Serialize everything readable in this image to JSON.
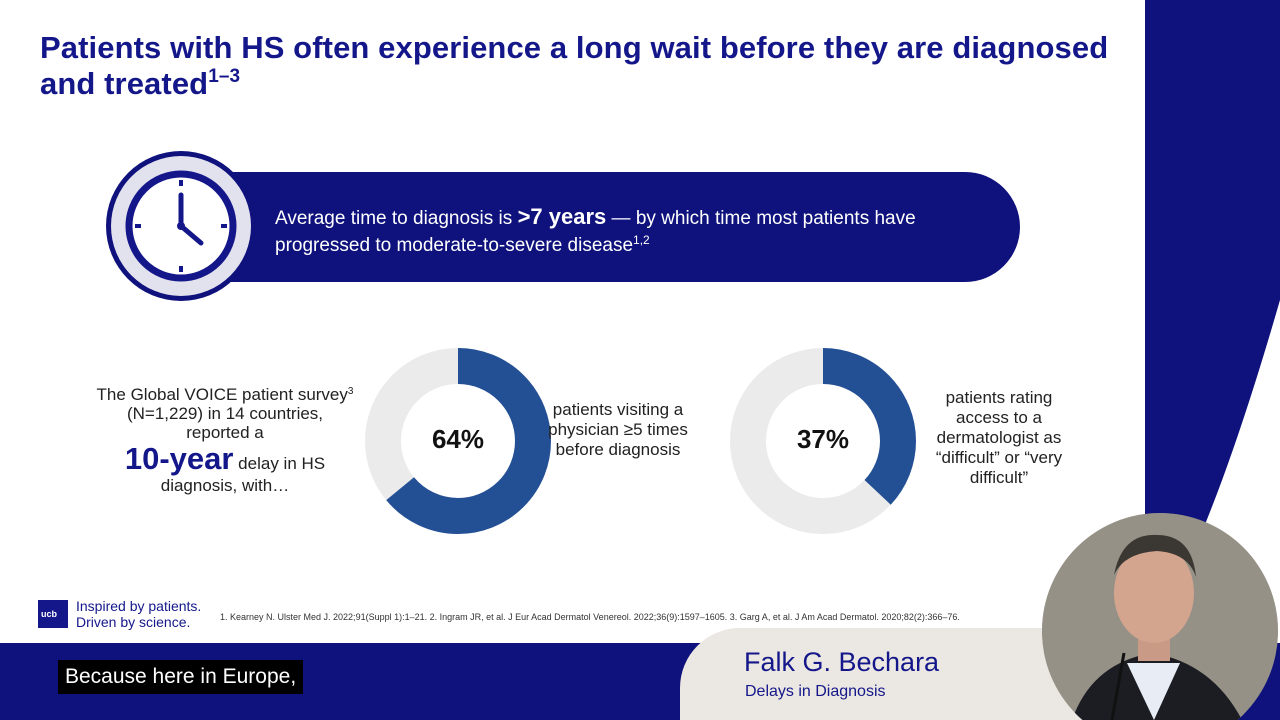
{
  "slide": {
    "title_main": "Patients with HS often experience a long wait before they are diagnosed and treated",
    "title_sup": "1–3",
    "banner": {
      "text_before": "Average time to diagnosis is ",
      "highlight": ">7 years",
      "text_after": " — by which time most patients have progressed to moderate-to-severe disease",
      "sup": "1,2",
      "icon": "clock-icon"
    },
    "survey": {
      "line1": "The Global VOICE patient survey",
      "sup": "3",
      "line2": " (N=1,229) in 14 countries, reported a",
      "big": "10-year",
      "line3": " delay in HS diagnosis, with…"
    },
    "stats": [
      {
        "value": "64%",
        "percent": 64,
        "description": "patients visiting a physician ≥5 times before diagnosis"
      },
      {
        "value": "37%",
        "percent": 37,
        "description": "patients rating access to a dermatologist as “difficult” or “very difficult”"
      }
    ],
    "colors": {
      "navy": "#0f127c",
      "donut_fill": "#234f95",
      "donut_track": "#ebebeb",
      "clock_face": "#e2e1ee"
    },
    "logo": {
      "mark": "ucb",
      "line1_a": "Inspired by ",
      "line1_b": "patients.",
      "line2_a": "Driven by ",
      "line2_b": "science."
    },
    "references": "1. Kearney N. Ulster Med J. 2022;91(Suppl 1):1–21. 2. Ingram JR, et al. J Eur Acad Dermatol Venereol. 2022;36(9):1597–1605. 3. Garg A, et al. J Am Acad Dermatol. 2020;82(2):366–76."
  },
  "caption": "Because here in Europe,",
  "presenter": {
    "name": "Falk G. Bechara",
    "talk_title": "Delays in Diagnosis"
  }
}
